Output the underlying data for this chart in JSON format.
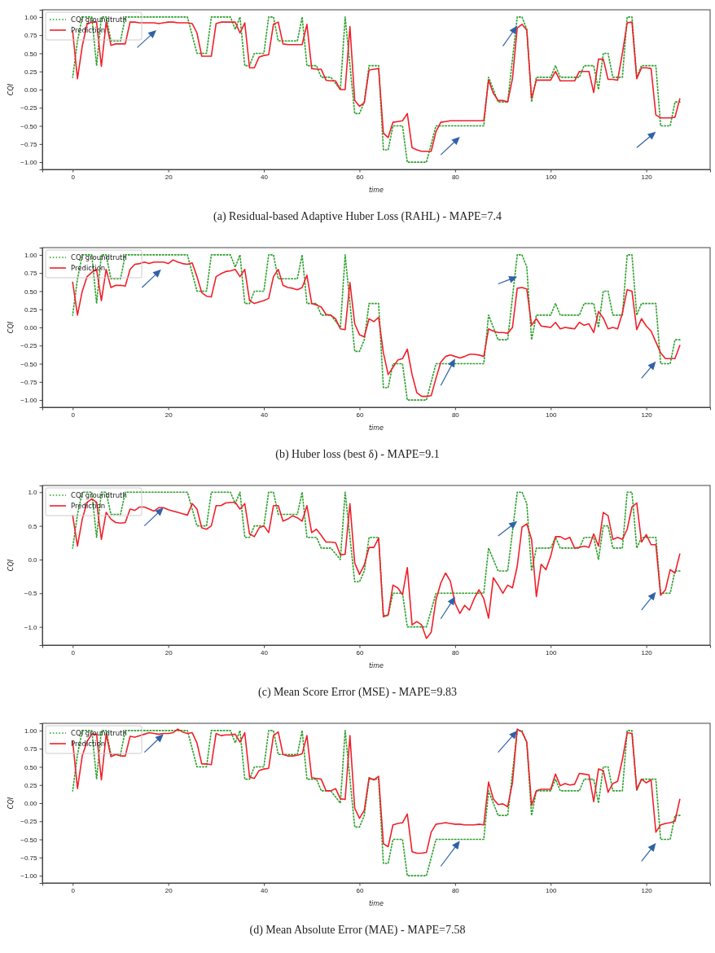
{
  "chart_data": [
    {
      "type": "line",
      "title": "(a) Residual-based Adaptive Huber Loss (RAHL) - MAPE=7.4",
      "xlabel": "time",
      "ylabel": "CQI",
      "legend": "top left",
      "xlim": [
        -6.35,
        133.35
      ],
      "xticks": [
        0,
        20,
        40,
        60,
        80,
        100,
        120
      ],
      "ylim": [
        -1.1,
        1.1
      ],
      "yticks": [
        {
          "value": -1,
          "label": "−1.00"
        },
        {
          "value": -0.75,
          "label": "−0.75"
        },
        {
          "value": -0.5,
          "label": "−0.50"
        },
        {
          "value": -0.25,
          "label": "−0.25"
        },
        {
          "value": 0,
          "label": "0.00"
        },
        {
          "value": 0.25,
          "label": "0.25"
        },
        {
          "value": 0.5,
          "label": "0.50"
        },
        {
          "value": 0.75,
          "label": "0.75"
        },
        {
          "value": 1,
          "label": "1.00"
        }
      ],
      "x": [
        0,
        1,
        2,
        3,
        4,
        5,
        6,
        7,
        8,
        9,
        10,
        11,
        12,
        13,
        14,
        15,
        16,
        17,
        18,
        19,
        20,
        21,
        22,
        23,
        24,
        25,
        26,
        27,
        28,
        29,
        30,
        31,
        32,
        33,
        34,
        35,
        36,
        37,
        38,
        39,
        40,
        41,
        42,
        43,
        44,
        45,
        46,
        47,
        48,
        49,
        50,
        51,
        52,
        53,
        54,
        55,
        56,
        57,
        58,
        59,
        60,
        61,
        62,
        63,
        64,
        65,
        66,
        67,
        68,
        69,
        70,
        71,
        72,
        73,
        74,
        75,
        76,
        77,
        78,
        79,
        80,
        81,
        82,
        83,
        84,
        85,
        86,
        87,
        88,
        89,
        90,
        91,
        92,
        93,
        94,
        95,
        96,
        97,
        98,
        99,
        100,
        101,
        102,
        103,
        104,
        105,
        106,
        107,
        108,
        109,
        110,
        111,
        112,
        113,
        114,
        115,
        116,
        117,
        118,
        119,
        120,
        121,
        122,
        123,
        124,
        125,
        126,
        127
      ],
      "series": [
        {
          "name": "CQI groundtruth",
          "color": "#2ca02c",
          "line_style": "dotted",
          "x": [
            0,
            1,
            2,
            4,
            5,
            6,
            7,
            8,
            10,
            11,
            24,
            26,
            28,
            29,
            33,
            34,
            35,
            36,
            37,
            38,
            40,
            41,
            42,
            43,
            47,
            48,
            49,
            51,
            52,
            54,
            56,
            57,
            59,
            60,
            61,
            62,
            64,
            65,
            66,
            67,
            69,
            70,
            74,
            76,
            86,
            87,
            89,
            91,
            93,
            94,
            95,
            96,
            97,
            100,
            101,
            102,
            106,
            107,
            109,
            110,
            111,
            112,
            113,
            115,
            116,
            117,
            118,
            119,
            122,
            123,
            125,
            126,
            127
          ],
          "values": [
            0.17,
            0.67,
            1,
            1,
            0.33,
            1,
            1,
            0.67,
            0.67,
            1,
            1,
            0.5,
            0.5,
            1,
            1,
            0.83,
            1,
            0.33,
            0.33,
            0.5,
            0.5,
            1,
            1,
            0.67,
            0.67,
            1,
            0.33,
            0.33,
            0.17,
            0.17,
            0,
            1,
            -0.33,
            -0.33,
            -0.17,
            0.33,
            0.33,
            -0.83,
            -0.83,
            -0.5,
            -0.5,
            -1,
            -1,
            -0.5,
            -0.5,
            0.17,
            -0.17,
            -0.17,
            1,
            1,
            0.83,
            -0.17,
            0.17,
            0.17,
            0.33,
            0.17,
            0.17,
            0.33,
            0.33,
            0,
            0.5,
            0.5,
            0.17,
            0.17,
            1,
            1,
            0.17,
            0.33,
            0.33,
            -0.5,
            -0.5,
            -0.17,
            -0.17
          ]
        },
        {
          "name": "Prediction",
          "color": "#f0202a",
          "line_style": "solid",
          "values": [
            0.8,
            0.15,
            0.6,
            0.9,
            0.93,
            0.93,
            0.32,
            0.93,
            0.61,
            0.63,
            0.63,
            0.63,
            0.93,
            0.93,
            0.92,
            0.92,
            0.92,
            0.92,
            0.91,
            0.92,
            0.93,
            0.93,
            0.92,
            0.92,
            0.92,
            0.91,
            0.78,
            0.46,
            0.46,
            0.46,
            0.91,
            0.93,
            0.93,
            0.93,
            0.93,
            0.78,
            0.92,
            0.3,
            0.3,
            0.45,
            0.47,
            0.48,
            0.9,
            0.93,
            0.63,
            0.62,
            0.62,
            0.62,
            0.62,
            0.9,
            0.29,
            0.28,
            0.28,
            0.13,
            0.12,
            0.12,
            0.0,
            0.0,
            0.87,
            -0.15,
            -0.23,
            -0.18,
            0.27,
            0.28,
            0.29,
            -0.6,
            -0.66,
            -0.45,
            -0.44,
            -0.43,
            -0.33,
            -0.8,
            -0.83,
            -0.85,
            -0.85,
            -0.85,
            -0.58,
            -0.45,
            -0.44,
            -0.43,
            -0.43,
            -0.43,
            -0.43,
            -0.43,
            -0.43,
            -0.43,
            -0.43,
            0.13,
            -0.05,
            -0.15,
            -0.15,
            -0.17,
            0.15,
            0.85,
            0.9,
            0.82,
            -0.12,
            0.13,
            0.13,
            0.13,
            0.13,
            0.25,
            0.12,
            0.12,
            0.12,
            0.12,
            0.25,
            0.25,
            0.25,
            -0.04,
            0.42,
            0.42,
            0.14,
            0.14,
            0.13,
            0.5,
            0.92,
            0.93,
            0.15,
            0.3,
            0.3,
            0.29,
            -0.35,
            -0.39,
            -0.39,
            -0.39,
            -0.38,
            -0.13
          ]
        }
      ]
    },
    {
      "type": "line",
      "title": "(b) Huber loss (best δ) - MAPE=9.1",
      "xlabel": "time",
      "ylabel": "CQI",
      "legend": "top left",
      "xlim": [
        -6.35,
        133.35
      ],
      "xticks": [
        0,
        20,
        40,
        60,
        80,
        100,
        120
      ],
      "ylim": [
        -1.1,
        1.1
      ],
      "yticks": [
        {
          "value": -1,
          "label": "−1.00"
        },
        {
          "value": -0.75,
          "label": "−0.75"
        },
        {
          "value": -0.5,
          "label": "−0.50"
        },
        {
          "value": -0.25,
          "label": "−0.25"
        },
        {
          "value": 0,
          "label": "0.00"
        },
        {
          "value": 0.25,
          "label": "0.25"
        },
        {
          "value": 0.5,
          "label": "0.50"
        },
        {
          "value": 0.75,
          "label": "0.75"
        },
        {
          "value": 1,
          "label": "1.00"
        }
      ],
      "x": [
        0,
        1,
        2,
        3,
        4,
        5,
        6,
        7,
        8,
        9,
        10,
        11,
        12,
        13,
        14,
        15,
        16,
        17,
        18,
        19,
        20,
        21,
        22,
        23,
        24,
        25,
        26,
        27,
        28,
        29,
        30,
        31,
        32,
        33,
        34,
        35,
        36,
        37,
        38,
        39,
        40,
        41,
        42,
        43,
        44,
        45,
        46,
        47,
        48,
        49,
        50,
        51,
        52,
        53,
        54,
        55,
        56,
        57,
        58,
        59,
        60,
        61,
        62,
        63,
        64,
        65,
        66,
        67,
        68,
        69,
        70,
        71,
        72,
        73,
        74,
        75,
        76,
        77,
        78,
        79,
        80,
        81,
        82,
        83,
        84,
        85,
        86,
        87,
        88,
        89,
        90,
        91,
        92,
        93,
        94,
        95,
        96,
        97,
        98,
        99,
        100,
        101,
        102,
        103,
        104,
        105,
        106,
        107,
        108,
        109,
        110,
        111,
        112,
        113,
        114,
        115,
        116,
        117,
        118,
        119,
        120,
        121,
        122,
        123,
        124,
        125,
        126,
        127
      ],
      "series": [
        {
          "name": "CQI groundtruth",
          "color": "#2ca02c",
          "line_style": "dotted",
          "x": [
            0,
            1,
            2,
            4,
            5,
            6,
            7,
            8,
            10,
            11,
            24,
            26,
            28,
            29,
            33,
            34,
            35,
            36,
            37,
            38,
            40,
            41,
            42,
            43,
            47,
            48,
            49,
            51,
            52,
            54,
            56,
            57,
            59,
            60,
            61,
            62,
            64,
            65,
            66,
            67,
            69,
            70,
            74,
            76,
            86,
            87,
            89,
            91,
            93,
            94,
            95,
            96,
            97,
            100,
            101,
            102,
            106,
            107,
            109,
            110,
            111,
            112,
            113,
            115,
            116,
            117,
            118,
            119,
            122,
            123,
            125,
            126,
            127
          ],
          "values": [
            0.17,
            0.67,
            1,
            1,
            0.33,
            1,
            1,
            0.67,
            0.67,
            1,
            1,
            0.5,
            0.5,
            1,
            1,
            0.83,
            1,
            0.33,
            0.33,
            0.5,
            0.5,
            1,
            1,
            0.67,
            0.67,
            1,
            0.33,
            0.33,
            0.17,
            0.17,
            0,
            1,
            -0.33,
            -0.33,
            -0.17,
            0.33,
            0.33,
            -0.83,
            -0.83,
            -0.5,
            -0.5,
            -1,
            -1,
            -0.5,
            -0.5,
            0.17,
            -0.17,
            -0.17,
            1,
            1,
            0.83,
            -0.17,
            0.17,
            0.17,
            0.33,
            0.17,
            0.17,
            0.33,
            0.33,
            0,
            0.5,
            0.5,
            0.17,
            0.17,
            1,
            1,
            0.17,
            0.33,
            0.33,
            -0.5,
            -0.5,
            -0.17,
            -0.17
          ]
        },
        {
          "name": "Prediction",
          "color": "#f0202a",
          "line_style": "solid",
          "values": [
            0.62,
            0.17,
            0.5,
            0.7,
            0.76,
            0.8,
            0.37,
            0.8,
            0.55,
            0.58,
            0.58,
            0.57,
            0.8,
            0.87,
            0.88,
            0.9,
            0.88,
            0.9,
            0.9,
            0.9,
            0.88,
            0.93,
            0.9,
            0.88,
            0.87,
            0.89,
            0.7,
            0.48,
            0.43,
            0.42,
            0.7,
            0.74,
            0.77,
            0.78,
            0.8,
            0.7,
            0.8,
            0.37,
            0.33,
            0.35,
            0.37,
            0.4,
            0.7,
            0.8,
            0.58,
            0.55,
            0.54,
            0.52,
            0.55,
            0.72,
            0.33,
            0.31,
            0.28,
            0.18,
            0.17,
            0.12,
            -0.02,
            -0.03,
            0.62,
            0.05,
            -0.1,
            -0.13,
            0.12,
            0.08,
            0.14,
            -0.35,
            -0.65,
            -0.55,
            -0.45,
            -0.43,
            -0.3,
            -0.65,
            -0.9,
            -0.95,
            -0.95,
            -0.94,
            -0.7,
            -0.48,
            -0.4,
            -0.38,
            -0.4,
            -0.42,
            -0.4,
            -0.37,
            -0.37,
            -0.38,
            -0.4,
            -0.02,
            -0.05,
            -0.07,
            -0.07,
            -0.08,
            0.0,
            0.54,
            0.55,
            0.53,
            0.03,
            0.12,
            0.02,
            0.01,
            0.0,
            0.07,
            -0.02,
            0.0,
            -0.01,
            -0.02,
            0.07,
            0.03,
            0.05,
            -0.07,
            0.22,
            0.13,
            -0.02,
            0.0,
            -0.02,
            0.2,
            0.52,
            0.5,
            -0.03,
            0.12,
            0.02,
            -0.05,
            -0.2,
            -0.35,
            -0.43,
            -0.43,
            -0.43,
            -0.25
          ]
        }
      ]
    },
    {
      "type": "line",
      "title": "(c) Mean Score Error (MSE) - MAPE=9.83",
      "xlabel": "time",
      "ylabel": "CQI",
      "legend": "top left",
      "xlim": [
        -6.35,
        133.35
      ],
      "xticks": [
        0,
        20,
        40,
        60,
        80,
        100,
        120
      ],
      "ylim": [
        -1.27,
        1.1
      ],
      "yticks": [
        {
          "value": -1,
          "label": "−1.0"
        },
        {
          "value": -0.5,
          "label": "−0.5"
        },
        {
          "value": 0,
          "label": "0.0"
        },
        {
          "value": 0.5,
          "label": "0.5"
        },
        {
          "value": 1,
          "label": "1.0"
        }
      ],
      "x": [
        0,
        1,
        2,
        3,
        4,
        5,
        6,
        7,
        8,
        9,
        10,
        11,
        12,
        13,
        14,
        15,
        16,
        17,
        18,
        19,
        20,
        21,
        22,
        23,
        24,
        25,
        26,
        27,
        28,
        29,
        30,
        31,
        32,
        33,
        34,
        35,
        36,
        37,
        38,
        39,
        40,
        41,
        42,
        43,
        44,
        45,
        46,
        47,
        48,
        49,
        50,
        51,
        52,
        53,
        54,
        55,
        56,
        57,
        58,
        59,
        60,
        61,
        62,
        63,
        64,
        65,
        66,
        67,
        68,
        69,
        70,
        71,
        72,
        73,
        74,
        75,
        76,
        77,
        78,
        79,
        80,
        81,
        82,
        83,
        84,
        85,
        86,
        87,
        88,
        89,
        90,
        91,
        92,
        93,
        94,
        95,
        96,
        97,
        98,
        99,
        100,
        101,
        102,
        103,
        104,
        105,
        106,
        107,
        108,
        109,
        110,
        111,
        112,
        113,
        114,
        115,
        116,
        117,
        118,
        119,
        120,
        121,
        122,
        123,
        124,
        125,
        126,
        127
      ],
      "series": [
        {
          "name": "CQI groundtruth",
          "color": "#2ca02c",
          "line_style": "dotted",
          "x": [
            0,
            1,
            2,
            4,
            5,
            6,
            7,
            8,
            10,
            11,
            24,
            26,
            28,
            29,
            33,
            34,
            35,
            36,
            37,
            38,
            40,
            41,
            42,
            43,
            47,
            48,
            49,
            51,
            52,
            54,
            56,
            57,
            59,
            60,
            61,
            62,
            64,
            65,
            66,
            67,
            69,
            70,
            74,
            76,
            86,
            87,
            89,
            91,
            93,
            94,
            95,
            96,
            97,
            100,
            101,
            102,
            106,
            107,
            109,
            110,
            111,
            112,
            113,
            115,
            116,
            117,
            118,
            119,
            122,
            123,
            125,
            126,
            127
          ],
          "values": [
            0.17,
            0.67,
            1,
            1,
            0.33,
            1,
            1,
            0.67,
            0.67,
            1,
            1,
            0.5,
            0.5,
            1,
            1,
            0.83,
            1,
            0.33,
            0.33,
            0.5,
            0.5,
            1,
            1,
            0.67,
            0.67,
            1,
            0.33,
            0.33,
            0.17,
            0.17,
            0,
            1,
            -0.33,
            -0.33,
            -0.17,
            0.33,
            0.33,
            -0.83,
            -0.83,
            -0.5,
            -0.5,
            -1,
            -1,
            -0.5,
            -0.5,
            0.17,
            -0.17,
            -0.17,
            1,
            1,
            0.83,
            -0.17,
            0.17,
            0.17,
            0.33,
            0.17,
            0.17,
            0.33,
            0.33,
            0,
            0.5,
            0.5,
            0.17,
            0.17,
            1,
            1,
            0.17,
            0.33,
            0.33,
            -0.5,
            -0.5,
            -0.17,
            -0.17
          ]
        },
        {
          "name": "Prediction",
          "color": "#f0202a",
          "line_style": "solid",
          "values": [
            0.65,
            0.2,
            0.6,
            0.85,
            0.9,
            0.85,
            0.3,
            0.7,
            0.6,
            0.55,
            0.54,
            0.55,
            0.75,
            0.73,
            0.78,
            0.78,
            0.75,
            0.72,
            0.77,
            0.77,
            0.74,
            0.72,
            0.7,
            0.68,
            0.66,
            0.83,
            0.75,
            0.47,
            0.45,
            0.5,
            0.8,
            0.8,
            0.84,
            0.85,
            0.85,
            0.75,
            0.83,
            0.38,
            0.34,
            0.47,
            0.5,
            0.4,
            0.8,
            0.8,
            0.57,
            0.6,
            0.65,
            0.62,
            0.57,
            0.8,
            0.4,
            0.45,
            0.36,
            0.26,
            0.26,
            0.25,
            0.07,
            0.08,
            0.83,
            -0.05,
            -0.22,
            -0.08,
            0.18,
            0.18,
            0.32,
            -0.85,
            -0.82,
            -0.38,
            -0.42,
            -0.52,
            -0.12,
            -0.97,
            -0.92,
            -0.97,
            -1.17,
            -1.08,
            -0.6,
            -0.35,
            -0.2,
            -0.32,
            -0.65,
            -0.8,
            -0.68,
            -0.75,
            -0.58,
            -0.45,
            -0.58,
            -0.87,
            -0.27,
            -0.38,
            -0.5,
            -0.38,
            -0.42,
            -0.1,
            0.48,
            0.53,
            0.3,
            -0.55,
            -0.07,
            -0.15,
            0.05,
            0.34,
            0.34,
            0.3,
            0.33,
            0.17,
            0.18,
            0.2,
            0.18,
            0.38,
            0.2,
            0.7,
            0.65,
            0.3,
            0.33,
            0.3,
            0.45,
            0.78,
            0.84,
            0.26,
            0.37,
            0.22,
            0.22,
            -0.53,
            -0.45,
            -0.15,
            -0.2,
            0.08
          ]
        }
      ]
    },
    {
      "type": "line",
      "title": "(d) Mean Absolute Error (MAE) - MAPE=7.58",
      "xlabel": "time",
      "ylabel": "CQI",
      "legend": "top left",
      "xlim": [
        -6.35,
        133.35
      ],
      "xticks": [
        0,
        20,
        40,
        60,
        80,
        100,
        120
      ],
      "ylim": [
        -1.1,
        1.1
      ],
      "yticks": [
        {
          "value": -1,
          "label": "−1.00"
        },
        {
          "value": -0.75,
          "label": "−0.75"
        },
        {
          "value": -0.5,
          "label": "−0.50"
        },
        {
          "value": -0.25,
          "label": "−0.25"
        },
        {
          "value": 0,
          "label": "0.00"
        },
        {
          "value": 0.25,
          "label": "0.25"
        },
        {
          "value": 0.5,
          "label": "0.50"
        },
        {
          "value": 0.75,
          "label": "0.75"
        },
        {
          "value": 1,
          "label": "1.00"
        }
      ],
      "x": [
        0,
        1,
        2,
        3,
        4,
        5,
        6,
        7,
        8,
        9,
        10,
        11,
        12,
        13,
        14,
        15,
        16,
        17,
        18,
        19,
        20,
        21,
        22,
        23,
        24,
        25,
        26,
        27,
        28,
        29,
        30,
        31,
        32,
        33,
        34,
        35,
        36,
        37,
        38,
        39,
        40,
        41,
        42,
        43,
        44,
        45,
        46,
        47,
        48,
        49,
        50,
        51,
        52,
        53,
        54,
        55,
        56,
        57,
        58,
        59,
        60,
        61,
        62,
        63,
        64,
        65,
        66,
        67,
        68,
        69,
        70,
        71,
        72,
        73,
        74,
        75,
        76,
        77,
        78,
        79,
        80,
        81,
        82,
        83,
        84,
        85,
        86,
        87,
        88,
        89,
        90,
        91,
        92,
        93,
        94,
        95,
        96,
        97,
        98,
        99,
        100,
        101,
        102,
        103,
        104,
        105,
        106,
        107,
        108,
        109,
        110,
        111,
        112,
        113,
        114,
        115,
        116,
        117,
        118,
        119,
        120,
        121,
        122,
        123,
        124,
        125,
        126,
        127
      ],
      "series": [
        {
          "name": "CQI groundtruth",
          "color": "#2ca02c",
          "line_style": "dotted",
          "x": [
            0,
            1,
            2,
            4,
            5,
            6,
            7,
            8,
            10,
            11,
            24,
            26,
            28,
            29,
            33,
            34,
            35,
            36,
            37,
            38,
            40,
            41,
            42,
            43,
            47,
            48,
            49,
            51,
            52,
            54,
            56,
            57,
            59,
            60,
            61,
            62,
            64,
            65,
            66,
            67,
            69,
            70,
            74,
            76,
            86,
            87,
            89,
            91,
            93,
            94,
            95,
            96,
            97,
            100,
            101,
            102,
            106,
            107,
            109,
            110,
            111,
            112,
            113,
            115,
            116,
            117,
            118,
            119,
            122,
            123,
            125,
            126,
            127
          ],
          "values": [
            0.17,
            0.67,
            1,
            1,
            0.33,
            1,
            1,
            0.67,
            0.67,
            1,
            1,
            0.5,
            0.5,
            1,
            1,
            0.83,
            1,
            0.33,
            0.33,
            0.5,
            0.5,
            1,
            1,
            0.67,
            0.67,
            1,
            0.33,
            0.33,
            0.17,
            0.17,
            0,
            1,
            -0.33,
            -0.33,
            -0.17,
            0.33,
            0.33,
            -0.83,
            -0.83,
            -0.5,
            -0.5,
            -1,
            -1,
            -0.5,
            -0.5,
            0.17,
            -0.17,
            -0.17,
            1,
            1,
            0.83,
            -0.17,
            0.17,
            0.17,
            0.33,
            0.17,
            0.17,
            0.33,
            0.33,
            0,
            0.5,
            0.5,
            0.17,
            0.17,
            1,
            1,
            0.17,
            0.33,
            0.33,
            -0.5,
            -0.5,
            -0.17,
            -0.17
          ]
        },
        {
          "name": "Prediction",
          "color": "#f0202a",
          "line_style": "solid",
          "values": [
            0.85,
            0.2,
            0.65,
            0.85,
            0.95,
            0.95,
            0.32,
            0.95,
            0.64,
            0.67,
            0.65,
            0.65,
            0.92,
            0.91,
            0.93,
            0.95,
            0.97,
            0.96,
            0.95,
            0.96,
            0.96,
            0.97,
            1.02,
            0.98,
            0.96,
            0.97,
            0.83,
            0.54,
            0.54,
            0.53,
            0.96,
            0.93,
            0.94,
            0.94,
            0.95,
            0.84,
            0.97,
            0.36,
            0.34,
            0.45,
            0.47,
            0.48,
            0.93,
            0.98,
            0.67,
            0.65,
            0.65,
            0.66,
            0.68,
            0.93,
            0.35,
            0.34,
            0.33,
            0.17,
            0.17,
            0.2,
            0.06,
            0.05,
            0.93,
            -0.07,
            -0.21,
            -0.1,
            0.35,
            0.32,
            0.37,
            -0.56,
            -0.6,
            -0.3,
            -0.28,
            -0.27,
            -0.15,
            -0.67,
            -0.69,
            -0.69,
            -0.68,
            -0.4,
            -0.29,
            -0.28,
            -0.27,
            -0.28,
            -0.29,
            -0.29,
            -0.3,
            -0.3,
            -0.3,
            -0.29,
            -0.3,
            0.29,
            0.06,
            -0.02,
            -0.01,
            -0.05,
            0.28,
            1.02,
            0.98,
            0.84,
            -0.03,
            0.17,
            0.19,
            0.19,
            0.19,
            0.4,
            0.24,
            0.27,
            0.25,
            0.26,
            0.41,
            0.4,
            0.39,
            0.02,
            0.47,
            0.45,
            0.15,
            0.27,
            0.3,
            0.6,
            0.97,
            0.96,
            0.19,
            0.33,
            0.28,
            0.32,
            -0.4,
            -0.3,
            -0.28,
            -0.27,
            -0.25,
            0.05
          ]
        }
      ]
    }
  ]
}
